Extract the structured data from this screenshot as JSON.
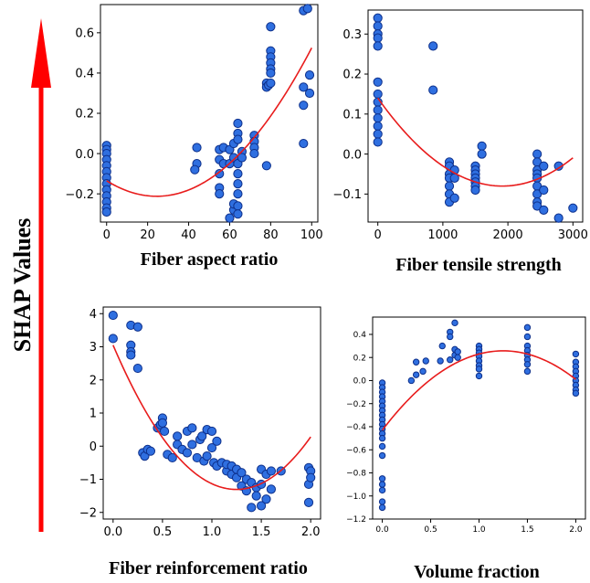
{
  "figure": {
    "ylabel": "SHAP Values",
    "arrow_color": "#ff0000",
    "point_fill": "#2f6fe0",
    "point_stroke": "#0d2f8a",
    "curve_color": "#e81c1c"
  },
  "chart_data": [
    {
      "type": "scatter",
      "xlabel": "Fiber aspect ratio",
      "ylabel": "",
      "xlim": [
        -3,
        103
      ],
      "ylim": [
        -0.34,
        0.74
      ],
      "xticks": [
        0,
        20,
        40,
        60,
        80,
        100
      ],
      "xtick_labels": [
        "0",
        "20",
        "40",
        "60",
        "80",
        "100"
      ],
      "yticks": [
        -0.2,
        0.0,
        0.2,
        0.4,
        0.6
      ],
      "ytick_labels": [
        "−0.2",
        "0.0",
        "0.2",
        "0.4",
        "0.6"
      ],
      "grid": false,
      "fit_curve": {
        "type": "quadratic",
        "coefficients": [
          -0.135,
          -0.0063,
          0.000129
        ]
      },
      "points": [
        {
          "x": 0,
          "y": 0.04
        },
        {
          "x": 0,
          "y": 0.02
        },
        {
          "x": 0,
          "y": 0.0
        },
        {
          "x": 0,
          "y": -0.03
        },
        {
          "x": 0,
          "y": -0.06
        },
        {
          "x": 0,
          "y": -0.09
        },
        {
          "x": 0,
          "y": -0.12
        },
        {
          "x": 0,
          "y": -0.15
        },
        {
          "x": 0,
          "y": -0.18
        },
        {
          "x": 0,
          "y": -0.21
        },
        {
          "x": 0,
          "y": -0.24
        },
        {
          "x": 0,
          "y": -0.27
        },
        {
          "x": 0,
          "y": -0.29
        },
        {
          "x": 44,
          "y": 0.03
        },
        {
          "x": 44,
          "y": -0.05
        },
        {
          "x": 43,
          "y": -0.08
        },
        {
          "x": 55,
          "y": 0.02
        },
        {
          "x": 55,
          "y": -0.03
        },
        {
          "x": 55,
          "y": -0.1
        },
        {
          "x": 55,
          "y": -0.17
        },
        {
          "x": 55,
          "y": -0.2
        },
        {
          "x": 57,
          "y": 0.03
        },
        {
          "x": 57,
          "y": -0.05
        },
        {
          "x": 60,
          "y": -0.32
        },
        {
          "x": 60,
          "y": -0.05
        },
        {
          "x": 60,
          "y": 0.02
        },
        {
          "x": 62,
          "y": -0.28
        },
        {
          "x": 62,
          "y": -0.25
        },
        {
          "x": 62,
          "y": 0.05
        },
        {
          "x": 62,
          "y": -0.02
        },
        {
          "x": 64,
          "y": 0.15
        },
        {
          "x": 64,
          "y": 0.1
        },
        {
          "x": 64,
          "y": 0.07
        },
        {
          "x": 64,
          "y": -0.05
        },
        {
          "x": 64,
          "y": -0.1
        },
        {
          "x": 64,
          "y": -0.15
        },
        {
          "x": 64,
          "y": -0.2
        },
        {
          "x": 64,
          "y": -0.26
        },
        {
          "x": 64,
          "y": -0.3
        },
        {
          "x": 66,
          "y": 0.01
        },
        {
          "x": 66,
          "y": -0.02
        },
        {
          "x": 72,
          "y": 0.09
        },
        {
          "x": 72,
          "y": 0.06
        },
        {
          "x": 72,
          "y": 0.03
        },
        {
          "x": 72,
          "y": 0.0
        },
        {
          "x": 78,
          "y": -0.06
        },
        {
          "x": 78,
          "y": 0.35
        },
        {
          "x": 78,
          "y": 0.33
        },
        {
          "x": 79,
          "y": 0.34
        },
        {
          "x": 80,
          "y": 0.63
        },
        {
          "x": 80,
          "y": 0.51
        },
        {
          "x": 80,
          "y": 0.48
        },
        {
          "x": 80,
          "y": 0.45
        },
        {
          "x": 80,
          "y": 0.42
        },
        {
          "x": 80,
          "y": 0.4
        },
        {
          "x": 80,
          "y": 0.35
        },
        {
          "x": 96,
          "y": 0.71
        },
        {
          "x": 98,
          "y": 0.72
        },
        {
          "x": 96,
          "y": 0.33
        },
        {
          "x": 96,
          "y": 0.24
        },
        {
          "x": 96,
          "y": 0.05
        },
        {
          "x": 99,
          "y": 0.39
        },
        {
          "x": 99,
          "y": 0.3
        }
      ]
    },
    {
      "type": "scatter",
      "xlabel": "Fiber tensile strength",
      "ylabel": "",
      "xlim": [
        -150,
        3150
      ],
      "ylim": [
        -0.17,
        0.36
      ],
      "xticks": [
        0,
        1000,
        2000,
        3000
      ],
      "xtick_labels": [
        "0",
        "1000",
        "2000",
        "3000"
      ],
      "yticks": [
        -0.1,
        0.0,
        0.1,
        0.2,
        0.3
      ],
      "ytick_labels": [
        "−0.1",
        "0.0",
        "0.1",
        "0.2",
        "0.3"
      ],
      "grid": false,
      "fit_curve": {
        "type": "quadratic",
        "coefficients": [
          0.14,
          -0.0002298,
          6e-08
        ]
      },
      "points": [
        {
          "x": 0,
          "y": 0.34
        },
        {
          "x": 0,
          "y": 0.32
        },
        {
          "x": 0,
          "y": 0.3
        },
        {
          "x": 0,
          "y": 0.29
        },
        {
          "x": 0,
          "y": 0.27
        },
        {
          "x": 0,
          "y": 0.18
        },
        {
          "x": 0,
          "y": 0.15
        },
        {
          "x": 0,
          "y": 0.13
        },
        {
          "x": 0,
          "y": 0.11
        },
        {
          "x": 0,
          "y": 0.09
        },
        {
          "x": 0,
          "y": 0.07
        },
        {
          "x": 0,
          "y": 0.05
        },
        {
          "x": 0,
          "y": 0.03
        },
        {
          "x": 850,
          "y": 0.27
        },
        {
          "x": 850,
          "y": 0.16
        },
        {
          "x": 1100,
          "y": -0.02
        },
        {
          "x": 1100,
          "y": -0.03
        },
        {
          "x": 1100,
          "y": -0.05
        },
        {
          "x": 1100,
          "y": -0.06
        },
        {
          "x": 1100,
          "y": -0.08
        },
        {
          "x": 1100,
          "y": -0.1
        },
        {
          "x": 1100,
          "y": -0.12
        },
        {
          "x": 1180,
          "y": -0.11
        },
        {
          "x": 1180,
          "y": -0.04
        },
        {
          "x": 1180,
          "y": -0.06
        },
        {
          "x": 1500,
          "y": -0.03
        },
        {
          "x": 1500,
          "y": -0.04
        },
        {
          "x": 1500,
          "y": -0.05
        },
        {
          "x": 1500,
          "y": -0.06
        },
        {
          "x": 1500,
          "y": -0.07
        },
        {
          "x": 1500,
          "y": -0.08
        },
        {
          "x": 1500,
          "y": -0.09
        },
        {
          "x": 1600,
          "y": 0.02
        },
        {
          "x": 1600,
          "y": 0.0
        },
        {
          "x": 2450,
          "y": 0.0
        },
        {
          "x": 2450,
          "y": -0.02
        },
        {
          "x": 2450,
          "y": -0.04
        },
        {
          "x": 2450,
          "y": -0.05
        },
        {
          "x": 2450,
          "y": -0.06
        },
        {
          "x": 2450,
          "y": -0.08
        },
        {
          "x": 2450,
          "y": -0.1
        },
        {
          "x": 2450,
          "y": -0.12
        },
        {
          "x": 2450,
          "y": -0.13
        },
        {
          "x": 2550,
          "y": -0.14
        },
        {
          "x": 2550,
          "y": -0.09
        },
        {
          "x": 2550,
          "y": -0.03
        },
        {
          "x": 2780,
          "y": -0.03
        },
        {
          "x": 2780,
          "y": -0.16
        },
        {
          "x": 3000,
          "y": -0.135
        }
      ]
    },
    {
      "type": "scatter",
      "xlabel": "Fiber reinforcement ratio",
      "ylabel": "",
      "xlim": [
        -0.1,
        2.1
      ],
      "ylim": [
        -2.2,
        4.2
      ],
      "xticks": [
        0.0,
        0.5,
        1.0,
        1.5,
        2.0
      ],
      "xtick_labels": [
        "0.0",
        "0.5",
        "1.0",
        "1.5",
        "2.0"
      ],
      "yticks": [
        -2,
        -1,
        0,
        1,
        2,
        3,
        4
      ],
      "ytick_labels": [
        "−2",
        "−1",
        "0",
        "1",
        "2",
        "3",
        "4"
      ],
      "grid": false,
      "fit_curve": {
        "type": "quadratic",
        "coefficients": [
          3.05,
          -6.985,
          2.8
        ]
      },
      "points": [
        {
          "x": 0.0,
          "y": 3.95
        },
        {
          "x": 0.0,
          "y": 3.25
        },
        {
          "x": 0.18,
          "y": 3.65
        },
        {
          "x": 0.18,
          "y": 3.05
        },
        {
          "x": 0.18,
          "y": 2.85
        },
        {
          "x": 0.18,
          "y": 2.75
        },
        {
          "x": 0.25,
          "y": 3.6
        },
        {
          "x": 0.25,
          "y": 2.35
        },
        {
          "x": 0.3,
          "y": -0.2
        },
        {
          "x": 0.32,
          "y": -0.3
        },
        {
          "x": 0.35,
          "y": -0.1
        },
        {
          "x": 0.38,
          "y": -0.15
        },
        {
          "x": 0.45,
          "y": 0.55
        },
        {
          "x": 0.48,
          "y": 0.65
        },
        {
          "x": 0.5,
          "y": 0.85
        },
        {
          "x": 0.5,
          "y": 0.7
        },
        {
          "x": 0.52,
          "y": 0.45
        },
        {
          "x": 0.55,
          "y": -0.25
        },
        {
          "x": 0.6,
          "y": -0.35
        },
        {
          "x": 0.65,
          "y": 0.3
        },
        {
          "x": 0.65,
          "y": 0.05
        },
        {
          "x": 0.7,
          "y": -0.1
        },
        {
          "x": 0.75,
          "y": 0.45
        },
        {
          "x": 0.75,
          "y": -0.2
        },
        {
          "x": 0.8,
          "y": 0.55
        },
        {
          "x": 0.8,
          "y": 0.05
        },
        {
          "x": 0.85,
          "y": -0.35
        },
        {
          "x": 0.88,
          "y": 0.2
        },
        {
          "x": 0.9,
          "y": 0.3
        },
        {
          "x": 0.92,
          "y": -0.45
        },
        {
          "x": 0.95,
          "y": 0.5
        },
        {
          "x": 0.95,
          "y": -0.3
        },
        {
          "x": 1.0,
          "y": -0.05
        },
        {
          "x": 1.0,
          "y": 0.45
        },
        {
          "x": 1.02,
          "y": -0.5
        },
        {
          "x": 1.05,
          "y": -0.6
        },
        {
          "x": 1.05,
          "y": 0.15
        },
        {
          "x": 1.1,
          "y": -0.5
        },
        {
          "x": 1.15,
          "y": -0.75
        },
        {
          "x": 1.15,
          "y": -0.55
        },
        {
          "x": 1.2,
          "y": -0.6
        },
        {
          "x": 1.2,
          "y": -0.85
        },
        {
          "x": 1.25,
          "y": -0.95
        },
        {
          "x": 1.25,
          "y": -0.7
        },
        {
          "x": 1.3,
          "y": -0.8
        },
        {
          "x": 1.3,
          "y": -1.2
        },
        {
          "x": 1.35,
          "y": -1.0
        },
        {
          "x": 1.35,
          "y": -1.35
        },
        {
          "x": 1.4,
          "y": -1.1
        },
        {
          "x": 1.4,
          "y": -1.85
        },
        {
          "x": 1.45,
          "y": -1.25
        },
        {
          "x": 1.45,
          "y": -1.5
        },
        {
          "x": 1.5,
          "y": -0.7
        },
        {
          "x": 1.5,
          "y": -1.15
        },
        {
          "x": 1.5,
          "y": -1.8
        },
        {
          "x": 1.55,
          "y": -1.6
        },
        {
          "x": 1.55,
          "y": -0.85
        },
        {
          "x": 1.6,
          "y": -0.75
        },
        {
          "x": 1.6,
          "y": -1.3
        },
        {
          "x": 1.7,
          "y": -0.75
        },
        {
          "x": 1.98,
          "y": -0.65
        },
        {
          "x": 1.98,
          "y": -1.15
        },
        {
          "x": 1.98,
          "y": -1.7
        },
        {
          "x": 2.0,
          "y": -0.75
        },
        {
          "x": 2.0,
          "y": -0.95
        }
      ]
    },
    {
      "type": "scatter",
      "xlabel": "Volume fraction",
      "ylabel": "",
      "xlim": [
        -0.1,
        2.1
      ],
      "ylim": [
        -1.2,
        0.55
      ],
      "xticks": [
        0.0,
        0.5,
        1.0,
        1.5,
        2.0
      ],
      "xtick_labels": [
        "0.0",
        "0.5",
        "1.0",
        "1.5",
        "2.0"
      ],
      "yticks": [
        -1.2,
        -1.0,
        -0.8,
        -0.6,
        -0.4,
        -0.2,
        0.0,
        0.2,
        0.4
      ],
      "ytick_labels": [
        "−1.2",
        "−1.0",
        "−0.8",
        "−0.6",
        "−0.4",
        "−0.2",
        "0.0",
        "0.2",
        "0.4"
      ],
      "grid": false,
      "fit_curve": {
        "type": "quadratic",
        "coefficients": [
          -0.43,
          1.1,
          -0.44
        ]
      },
      "points": [
        {
          "x": 0,
          "y": -0.02
        },
        {
          "x": 0,
          "y": -0.06
        },
        {
          "x": 0,
          "y": -0.1
        },
        {
          "x": 0,
          "y": -0.14
        },
        {
          "x": 0,
          "y": -0.18
        },
        {
          "x": 0,
          "y": -0.22
        },
        {
          "x": 0,
          "y": -0.26
        },
        {
          "x": 0,
          "y": -0.3
        },
        {
          "x": 0,
          "y": -0.34
        },
        {
          "x": 0,
          "y": -0.38
        },
        {
          "x": 0,
          "y": -0.42
        },
        {
          "x": 0,
          "y": -0.46
        },
        {
          "x": 0,
          "y": -0.5
        },
        {
          "x": 0,
          "y": -0.57
        },
        {
          "x": 0,
          "y": -0.65
        },
        {
          "x": 0,
          "y": -0.85
        },
        {
          "x": 0,
          "y": -0.9
        },
        {
          "x": 0,
          "y": -0.95
        },
        {
          "x": 0,
          "y": -1.05
        },
        {
          "x": 0,
          "y": -1.1
        },
        {
          "x": 0.3,
          "y": 0.0
        },
        {
          "x": 0.35,
          "y": 0.16
        },
        {
          "x": 0.35,
          "y": 0.05
        },
        {
          "x": 0.42,
          "y": 0.08
        },
        {
          "x": 0.45,
          "y": 0.17
        },
        {
          "x": 0.6,
          "y": 0.17
        },
        {
          "x": 0.62,
          "y": 0.3
        },
        {
          "x": 0.7,
          "y": 0.42
        },
        {
          "x": 0.7,
          "y": 0.38
        },
        {
          "x": 0.7,
          "y": 0.18
        },
        {
          "x": 0.75,
          "y": 0.5
        },
        {
          "x": 0.75,
          "y": 0.27
        },
        {
          "x": 0.75,
          "y": 0.22
        },
        {
          "x": 0.78,
          "y": 0.2
        },
        {
          "x": 0.78,
          "y": 0.25
        },
        {
          "x": 1.0,
          "y": 0.3
        },
        {
          "x": 1.0,
          "y": 0.27
        },
        {
          "x": 1.0,
          "y": 0.24
        },
        {
          "x": 1.0,
          "y": 0.21
        },
        {
          "x": 1.0,
          "y": 0.17
        },
        {
          "x": 1.0,
          "y": 0.13
        },
        {
          "x": 1.0,
          "y": 0.1
        },
        {
          "x": 1.0,
          "y": 0.04
        },
        {
          "x": 1.5,
          "y": 0.46
        },
        {
          "x": 1.5,
          "y": 0.38
        },
        {
          "x": 1.5,
          "y": 0.3
        },
        {
          "x": 1.5,
          "y": 0.26
        },
        {
          "x": 1.5,
          "y": 0.22
        },
        {
          "x": 1.5,
          "y": 0.18
        },
        {
          "x": 1.5,
          "y": 0.14
        },
        {
          "x": 1.5,
          "y": 0.08
        },
        {
          "x": 2.0,
          "y": 0.23
        },
        {
          "x": 2.0,
          "y": 0.16
        },
        {
          "x": 2.0,
          "y": 0.12
        },
        {
          "x": 2.0,
          "y": 0.08
        },
        {
          "x": 2.0,
          "y": 0.04
        },
        {
          "x": 2.0,
          "y": 0.0
        },
        {
          "x": 2.0,
          "y": -0.04
        },
        {
          "x": 2.0,
          "y": -0.08
        },
        {
          "x": 2.0,
          "y": -0.11
        }
      ]
    }
  ]
}
